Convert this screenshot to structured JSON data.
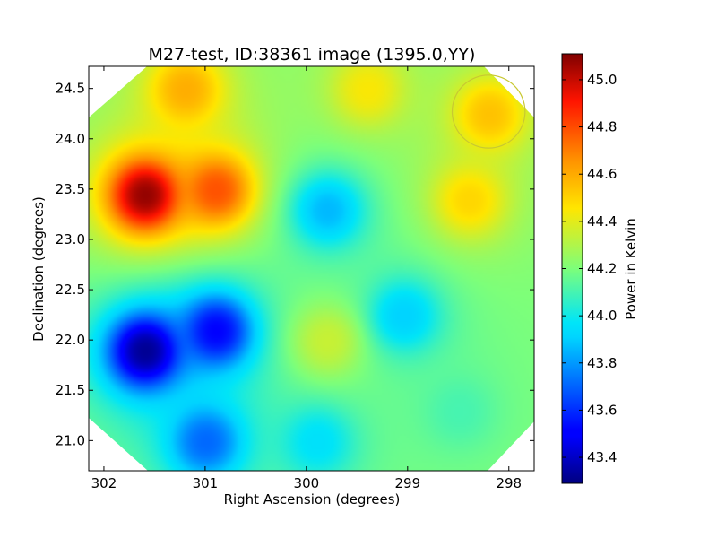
{
  "chart_data": {
    "type": "heatmap",
    "title": "M27-test, ID:38361 image (1395.0,YY)",
    "xlabel": "Right Ascension (degrees)",
    "ylabel": "Declination (degrees)",
    "xlim": [
      302.15,
      297.75
    ],
    "ylim": [
      20.7,
      24.72
    ],
    "xticks": [
      {
        "value": 302,
        "label": "302"
      },
      {
        "value": 301,
        "label": "301"
      },
      {
        "value": 300,
        "label": "300"
      },
      {
        "value": 299,
        "label": "299"
      },
      {
        "value": 298,
        "label": "298"
      }
    ],
    "yticks": [
      {
        "value": 21.0,
        "label": "21.0"
      },
      {
        "value": 21.5,
        "label": "21.5"
      },
      {
        "value": 22.0,
        "label": "22.0"
      },
      {
        "value": 22.5,
        "label": "22.5"
      },
      {
        "value": 23.0,
        "label": "23.0"
      },
      {
        "value": 23.5,
        "label": "23.5"
      },
      {
        "value": 24.0,
        "label": "24.0"
      },
      {
        "value": 24.5,
        "label": "24.5"
      }
    ],
    "colorbar": {
      "label": "Power in Kelvin",
      "range": [
        43.29,
        45.11
      ],
      "colormap": "jet",
      "ticks": [
        {
          "value": 43.4,
          "label": "43.4"
        },
        {
          "value": 43.6,
          "label": "43.6"
        },
        {
          "value": 43.8,
          "label": "43.8"
        },
        {
          "value": 44.0,
          "label": "44.0"
        },
        {
          "value": 44.2,
          "label": "44.2"
        },
        {
          "value": 44.4,
          "label": "44.4"
        },
        {
          "value": 44.6,
          "label": "44.6"
        },
        {
          "value": 44.8,
          "label": "44.8"
        },
        {
          "value": 45.0,
          "label": "45.0"
        }
      ]
    },
    "field": {
      "base_value": 44.2,
      "features": [
        {
          "ra": 301.6,
          "dec": 23.45,
          "value": 45.1
        },
        {
          "ra": 300.9,
          "dec": 23.5,
          "value": 44.8
        },
        {
          "ra": 301.2,
          "dec": 24.5,
          "value": 44.6
        },
        {
          "ra": 301.6,
          "dec": 21.9,
          "value": 43.3
        },
        {
          "ra": 300.9,
          "dec": 22.1,
          "value": 43.5
        },
        {
          "ra": 301.0,
          "dec": 21.0,
          "value": 43.7
        },
        {
          "ra": 299.8,
          "dec": 23.3,
          "value": 43.85
        },
        {
          "ra": 299.05,
          "dec": 22.25,
          "value": 43.9
        },
        {
          "ra": 299.8,
          "dec": 22.0,
          "value": 44.35
        },
        {
          "ra": 298.2,
          "dec": 24.25,
          "value": 44.55
        },
        {
          "ra": 298.4,
          "dec": 23.4,
          "value": 44.5
        },
        {
          "ra": 299.4,
          "dec": 24.5,
          "value": 44.45
        },
        {
          "ra": 299.9,
          "dec": 21.0,
          "value": 43.95
        },
        {
          "ra": 298.5,
          "dec": 21.3,
          "value": 44.1
        }
      ]
    },
    "marker": {
      "shape": "circle",
      "ra": 298.2,
      "dec": 24.27,
      "radius_deg": 0.36,
      "color": "#c8c832"
    }
  }
}
